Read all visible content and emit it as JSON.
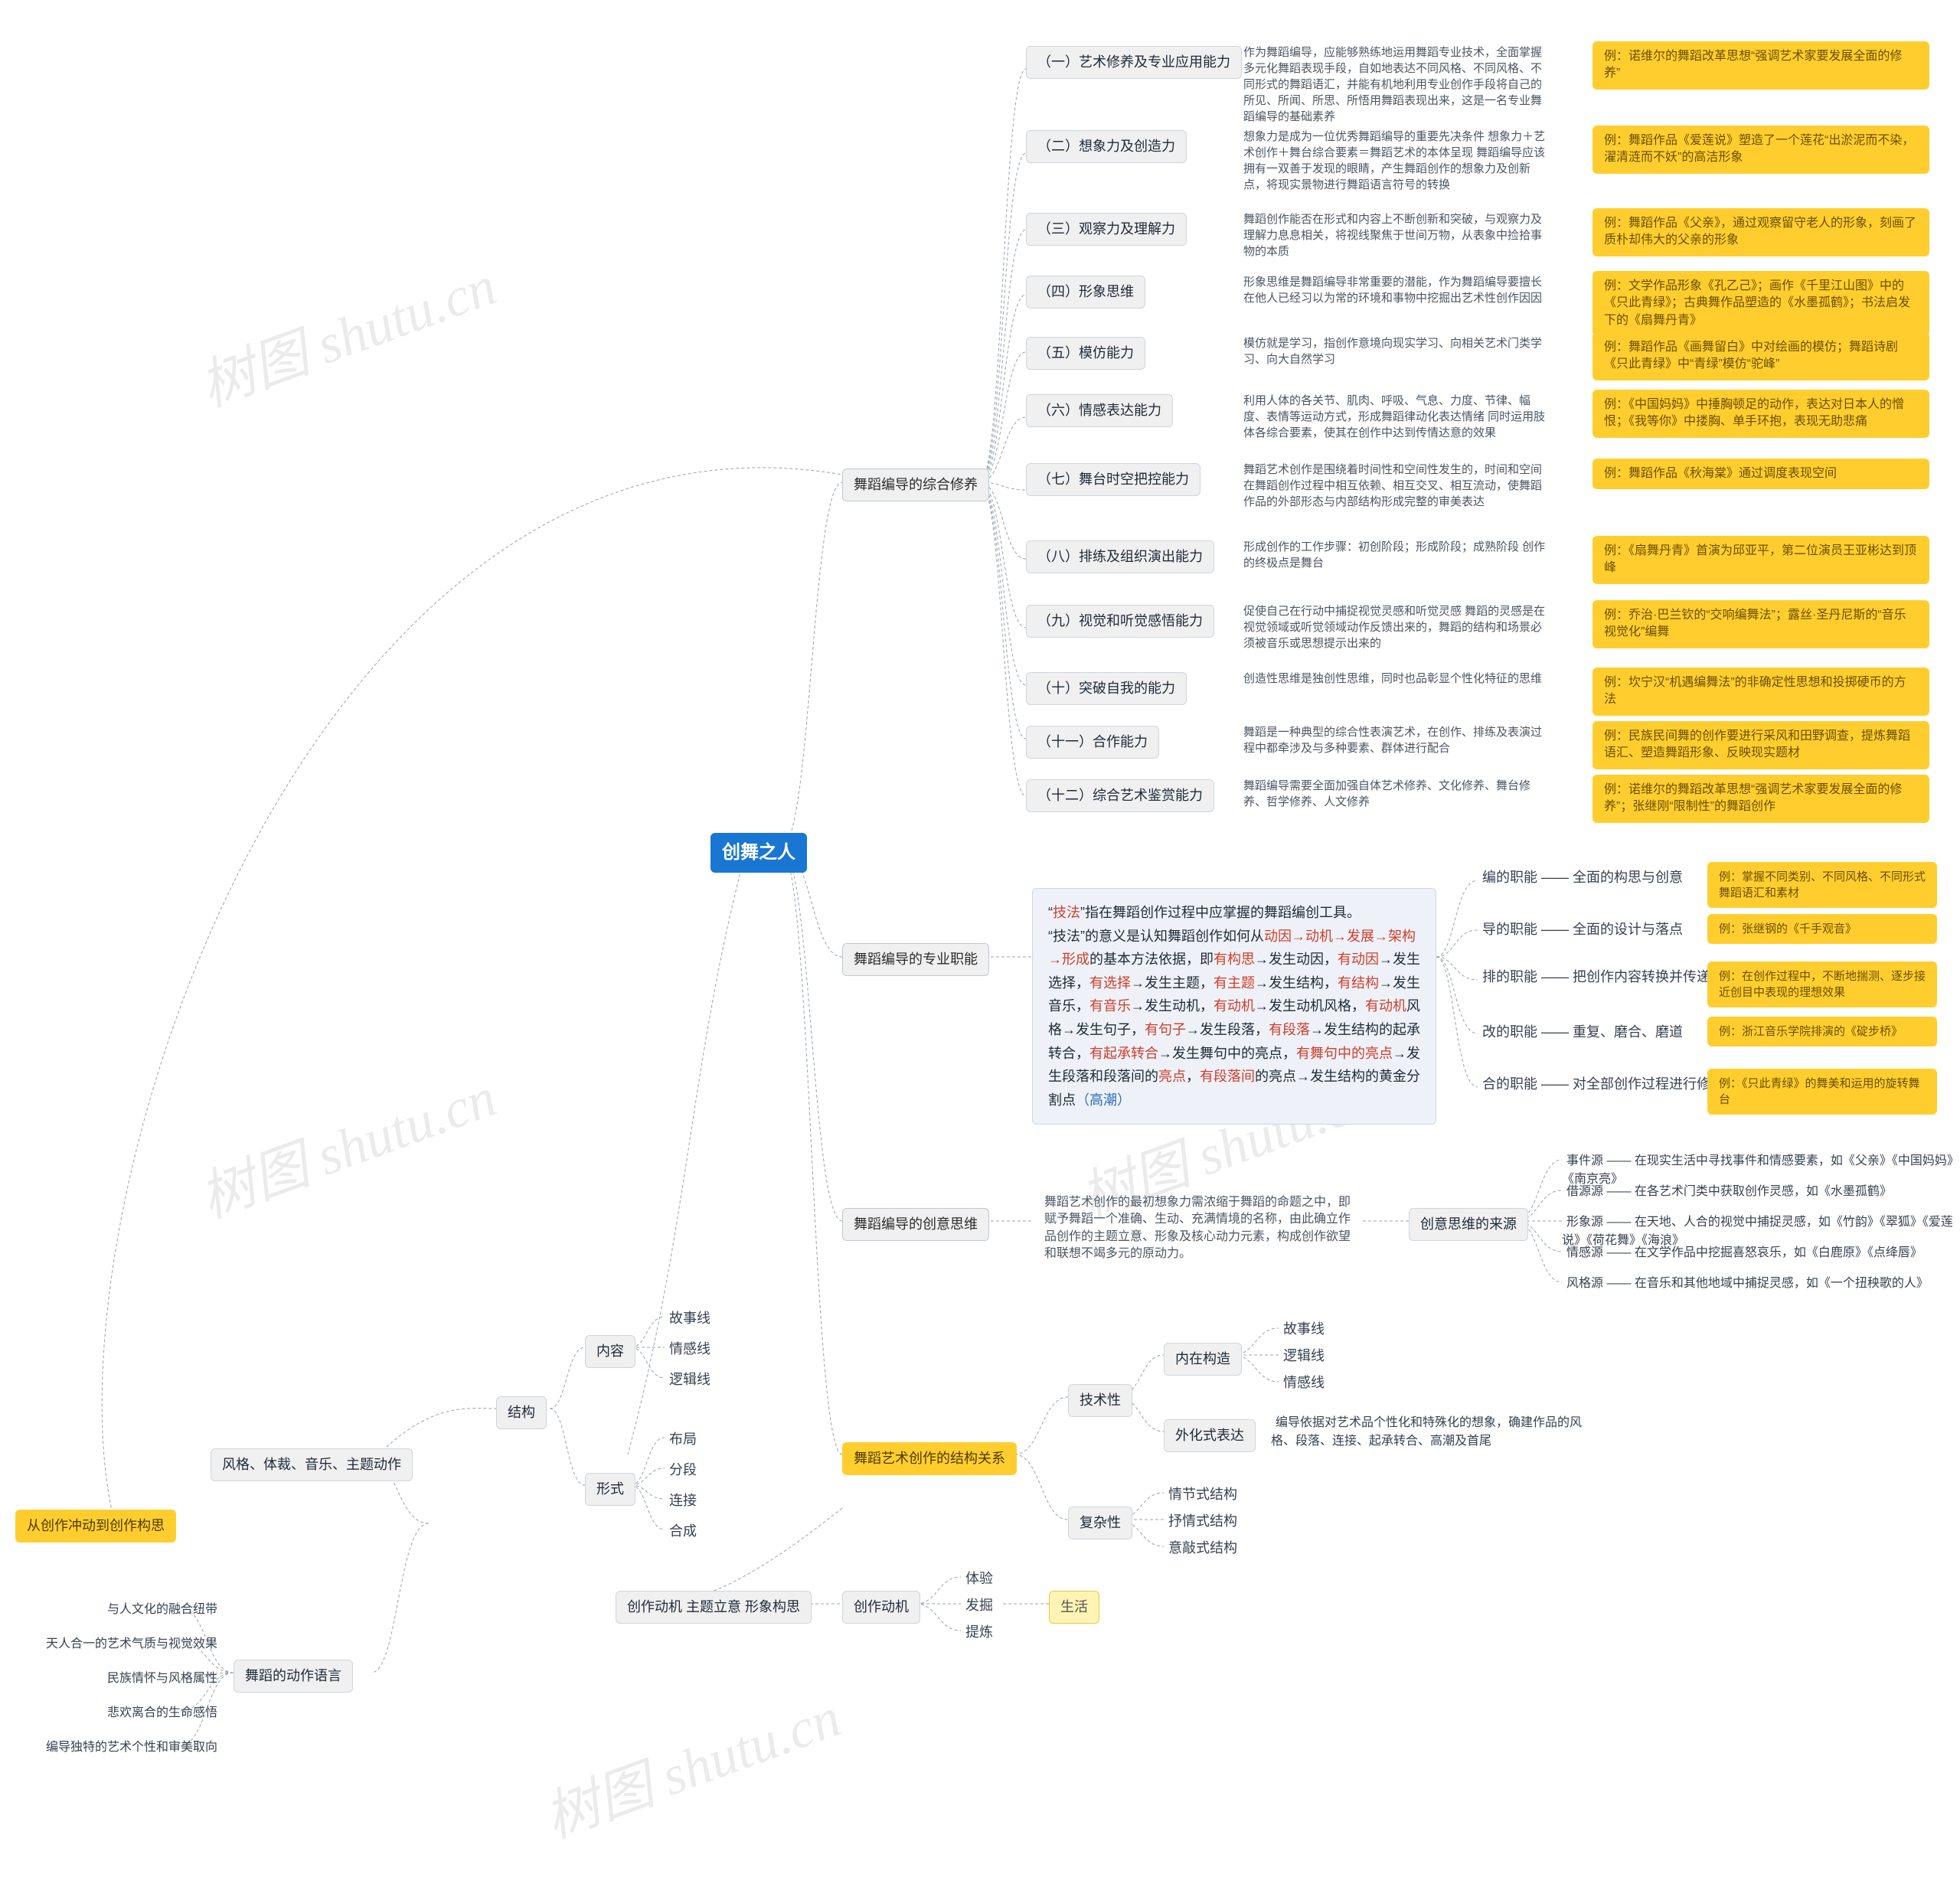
{
  "watermarks": {
    "text": "树图 shutu.cn"
  },
  "root": "创舞之人",
  "sections": {
    "s1": {
      "title": "舞蹈编导的综合修养",
      "rows": [
        {
          "num": "（一）艺术修养及专业应用能力",
          "desc": "作为舞蹈编导，应能够熟练地运用舞蹈专业技术，全面掌握多元化舞蹈表现手段，自如地表达不同风格、不同风格、不同形式的舞蹈语汇，并能有机地利用专业创作手段将自己的所见、所闻、所思、所悟用舞蹈表现出来，这是一名专业舞蹈编导的基础素养",
          "ex": "例：诺维尔的舞蹈改革思想“强调艺术家要发展全面的修养”"
        },
        {
          "num": "（二）想象力及创造力",
          "desc": "想象力是成为一位优秀舞蹈编导的重要先决条件 想象力＋艺术创作＋舞台综合要素＝舞蹈艺术的本体呈现 舞蹈编导应该拥有一双善于发现的眼睛，产生舞蹈创作的想象力及创新点，将现实景物进行舞蹈语言符号的转换",
          "ex": "例：舞蹈作品《爱莲说》塑造了一个莲花“出淤泥而不染，濯清涟而不妖”的高洁形象"
        },
        {
          "num": "（三）观察力及理解力",
          "desc": "舞蹈创作能否在形式和内容上不断创新和突破，与观察力及理解力息息相关，将视线聚焦于世间万物，从表象中捡拾事物的本质",
          "ex": "例：舞蹈作品《父亲》，通过观察留守老人的形象，刻画了质朴却伟大的父亲的形象"
        },
        {
          "num": "（四）形象思维",
          "desc": "形象思维是舞蹈编导非常重要的潜能，作为舞蹈编导要擅长在他人已经习以为常的环境和事物中挖掘出艺术性创作因因",
          "ex": "例：文学作品形象《孔乙己》；画作《千里江山图》中的《只此青绿》；古典舞作品塑造的《水墨孤鹤》；书法启发下的《扇舞丹青》"
        },
        {
          "num": "（五）模仿能力",
          "desc": "模仿就是学习，指创作意境向现实学习、向相关艺术门类学习、向大自然学习",
          "ex": "例：舞蹈作品《画舞留白》中对绘画的模仿；舞蹈诗剧《只此青绿》中“青绿”模仿“驼峰”"
        },
        {
          "num": "（六）情感表达能力",
          "desc": "利用人体的各关节、肌肉、呼吸、气息、力度、节律、幅度、表情等运动方式，形成舞蹈律动化表达情绪 同时运用肢体各综合要素，使其在创作中达到传情达意的效果",
          "ex": "例：《中国妈妈》中捶胸顿足的动作，表达对日本人的憎恨；《我等你》中搂胸、单手环抱，表现无助悲痛"
        },
        {
          "num": "（七）舞台时空把控能力",
          "desc": "舞蹈艺术创作是围绕着时间性和空间性发生的，时间和空间在舞蹈创作过程中相互依赖、相互交叉、相互流动，使舞蹈作品的外部形态与内部结构形成完整的审美表达",
          "ex": "例：舞蹈作品《秋海棠》通过调度表现空间"
        },
        {
          "num": "（八）排练及组织演出能力",
          "desc": "形成创作的工作步骤：初创阶段；形成阶段；成熟阶段 创作的终极点是舞台",
          "ex": "例：《扇舞丹青》首演为邱亚平，第二位演员王亚彬达到顶峰"
        },
        {
          "num": "（九）视觉和听觉感悟能力",
          "desc": "促使自己在行动中捕捉视觉灵感和听觉灵感 舞蹈的灵感是在视觉领域或听觉领域动作反馈出来的，舞蹈的结构和场景必须被音乐或思想提示出来的",
          "ex": "例：乔治·巴兰钦的“交响编舞法”；露丝·圣丹尼斯的“音乐视觉化”编舞"
        },
        {
          "num": "（十）突破自我的能力",
          "desc": "创造性思维是独创性思维，同时也品彰显个性化特征的思维",
          "ex": "例：坎宁汉“机遇编舞法”的非确定性思想和投掷硬币的方法"
        },
        {
          "num": "（十一）合作能力",
          "desc": "舞蹈是一种典型的综合性表演艺术，在创作、排练及表演过程中都牵涉及与多种要素、群体进行配合",
          "ex": "例：民族民间舞的创作要进行采风和田野调查，提炼舞蹈语汇、塑造舞蹈形象、反映现实题材"
        },
        {
          "num": "（十二）综合艺术鉴赏能力",
          "desc": "舞蹈编导需要全面加强自体艺术修养、文化修养、舞台修养、哲学修养、人文修养",
          "ex": "例：诺维尔的舞蹈改革思想“强调艺术家要发展全面的修养”；张继刚“限制性”的舞蹈创作"
        }
      ]
    },
    "s2": {
      "title": "舞蹈编导的专业职能",
      "big_html": "“<span class='red'>技法</span>”指在舞蹈创作过程中应掌握的舞蹈编创工具。<br>“技法”的意义是认知舞蹈创作如何从<span class='red'>动因→动机→发展→架构→形成</span>的基本方法依据，即<span class='red'>有构思</span>→发生动因，<span class='red'>有动因</span>→发生选择，<span class='red'>有选择</span>→发生主题，<span class='red'>有主题</span>→发生结构，<span class='red'>有结构</span>→发生音乐，<span class='red'>有音乐</span>→发生动机，<span class='red'>有动机</span>→发生动机风格，<span class='red'>有动机</span>风格→发生句子，<span class='red'>有句子</span>→发生段落，<span class='red'>有段落</span>→发生结构的起承转合，<span class='red'>有起承转合</span>→发生舞句中的亮点，<span class='red'>有舞句中的亮点</span>→发生段落和段落间的<span class='red'>亮点</span>，<span class='red'>有段落间</span>的亮点→发生结构的黄金分割点<span class='blue'>（高潮）</span>",
      "rows": [
        {
          "label": "编的职能",
          "dash": "全面的构思与创意",
          "ex": "例：掌握不同类别、不同风格、不同形式舞蹈语汇和素材"
        },
        {
          "label": "导的职能",
          "dash": "全面的设计与落点",
          "ex": "例：张继钢的《千手观音》"
        },
        {
          "label": "排的职能",
          "dash": "把创作内容转换并传递给表演者",
          "ex": "例：在创作过程中，不断地揣测、逐步接近创目中表现的理想效果"
        },
        {
          "label": "改的职能",
          "dash": "重复、磨合、磨道",
          "ex": "例：浙江音乐学院排演的《碇步桥》"
        },
        {
          "label": "合的职能",
          "dash": "对全部创作过程进行修整与合成",
          "ex": "例：《只此青绿》的舞美和运用的旋转舞台"
        }
      ]
    },
    "s3": {
      "title": "舞蹈编导的创意思维",
      "desc": "舞蹈艺术创作的最初想象力需浓缩于舞蹈的命题之中，即赋予舞蹈一个准确、生动、充满情境的名称，由此确立作品创作的主题立意、形象及核心动力元素，构成创作欲望和联想不竭多元的原动力。",
      "label": "创意思维的来源",
      "rows": [
        {
          "k": "事件源",
          "v": "在现实生活中寻找事件和情感要素，如《父亲》《中国妈妈》《南京亮》"
        },
        {
          "k": "借源源",
          "v": "在各艺术门类中获取创作灵感，如《水墨孤鹤》"
        },
        {
          "k": "形象源",
          "v": "在天地、人合的视觉中捕捉灵感，如《竹韵》《翠狐》《爱莲说》《荷花舞》《海浪》"
        },
        {
          "k": "情感源",
          "v": "在文学作品中挖掘喜怒哀乐，如《白鹿原》《点绛唇》"
        },
        {
          "k": "风格源",
          "v": "在音乐和其他地域中捕捉灵感，如《一个扭秧歌的人》"
        }
      ]
    },
    "s4": {
      "title": "舞蹈艺术创作的结构关系",
      "tech": {
        "label": "技术性",
        "neizai": "内在构造",
        "items": [
          "故事线",
          "逻辑线",
          "情感线"
        ],
        "waihua": "外化式表达",
        "waihua_desc": "编导依据对艺术品个性化和特殊化的想象，确建作品的风格、段落、连接、起承转合、高潮及首尾"
      },
      "fuza": {
        "label": "复杂性",
        "items": [
          "情节式结构",
          "抒情式结构",
          "意敲式结构"
        ]
      }
    },
    "s5": {
      "label": "创作动机 主题立意 形象构思",
      "node": "创作动机",
      "items": [
        "体验",
        "发掘",
        "提炼"
      ],
      "target": "生活"
    },
    "left": {
      "root": "从创作冲动到创作构思",
      "a": {
        "label": "风格、体裁、音乐、主题动作"
      },
      "b": {
        "label": "舞蹈的动作语言",
        "items": [
          "与人文化的融合纽带",
          "天人合一的艺术气质与视觉效果",
          "民族情怀与风格属性",
          "悲欢离合的生命感悟",
          "编导独特的艺术个性和审美取向"
        ]
      },
      "struct": {
        "label": "结构",
        "content": "内容",
        "content_items": [
          "故事线",
          "情感线",
          "逻辑线"
        ],
        "form": "形式",
        "form_items": [
          "布局",
          "分段",
          "连接",
          "合成"
        ]
      }
    }
  },
  "colors": {
    "root": "#1976d2",
    "example": "#ffce2e",
    "highlight": "#fff4b3",
    "edge": "#9aa4ae",
    "text": "#333333"
  }
}
